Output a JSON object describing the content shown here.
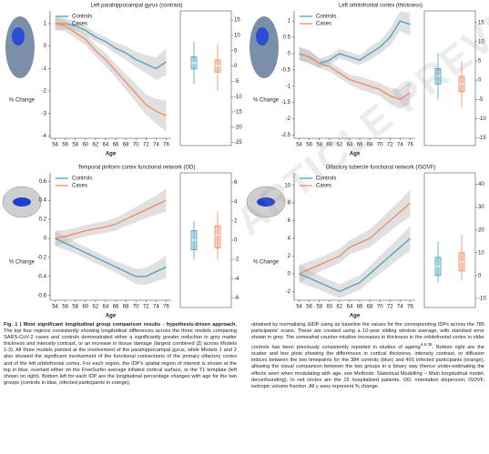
{
  "chart_data": [
    {
      "type": "line",
      "title": "Left parahippocampal gyrus (contrast)",
      "xlabel": "Age",
      "ylabel": "% Change",
      "x": [
        54,
        56,
        58,
        60,
        62,
        64,
        66,
        68,
        70,
        72,
        74,
        76
      ],
      "xlim": [
        53,
        77
      ],
      "xticks": [
        54,
        56,
        58,
        60,
        62,
        64,
        66,
        68,
        70,
        72,
        74,
        76
      ],
      "ylim": [
        -4.1,
        1.4
      ],
      "yticks": [
        1,
        0,
        -1,
        -2,
        -3,
        -4
      ],
      "series": [
        {
          "name": "Controls",
          "color": "#4aa0c2",
          "values": [
            1,
            1,
            0.9,
            0.7,
            0.4,
            0.2,
            -0.1,
            -0.3,
            -0.6,
            -0.8,
            -1,
            -0.7
          ],
          "error": [
            0.3,
            0.25,
            0.2,
            0.2,
            0.2,
            0.2,
            0.25,
            0.3,
            0.35,
            0.4,
            0.5,
            0.6
          ]
        },
        {
          "name": "Cases",
          "color": "#f08a5d",
          "values": [
            1,
            0.9,
            0.6,
            0.3,
            -0.2,
            -0.6,
            -1.1,
            -1.6,
            -2.1,
            -2.6,
            -2.9,
            -3.1
          ],
          "error": [
            0.3,
            0.25,
            0.25,
            0.25,
            0.25,
            0.3,
            0.3,
            0.35,
            0.4,
            0.45,
            0.55,
            0.7
          ]
        }
      ],
      "box": {
        "ylim": [
          -26,
          18
        ],
        "yticks": [
          15,
          10,
          5,
          0,
          -5,
          -10,
          -15,
          -20,
          -25
        ],
        "stats": [
          [
            -6,
            -1,
            1,
            3,
            8
          ],
          [
            -8,
            -2,
            0,
            2,
            7
          ]
        ]
      }
    },
    {
      "type": "line",
      "title": "Left orbitofrontal cortex (thickness)",
      "xlabel": "Age",
      "ylabel": "% Change",
      "x": [
        54,
        56,
        58,
        60,
        62,
        64,
        66,
        68,
        70,
        72,
        74,
        76
      ],
      "xlim": [
        53,
        77
      ],
      "xticks": [
        54,
        56,
        58,
        60,
        62,
        64,
        66,
        68,
        70,
        72,
        74,
        76
      ],
      "ylim": [
        -2.6,
        1.2
      ],
      "yticks": [
        1,
        0.5,
        0,
        -0.5,
        -1,
        -1.5,
        -2,
        -2.5
      ],
      "series": [
        {
          "name": "Controls",
          "color": "#4aa0c2",
          "values": [
            0,
            -0.1,
            -0.3,
            -0.2,
            0,
            -0.1,
            -0.2,
            0,
            0.2,
            0.5,
            1,
            0.9
          ],
          "error": [
            0.2,
            0.2,
            0.15,
            0.15,
            0.15,
            0.15,
            0.15,
            0.2,
            0.2,
            0.25,
            0.3,
            0.35
          ]
        },
        {
          "name": "Cases",
          "color": "#f08a5d",
          "values": [
            0,
            -0.1,
            -0.3,
            -0.4,
            -0.6,
            -0.8,
            -0.9,
            -1,
            -1.1,
            -1.3,
            -1.4,
            -1.2
          ],
          "error": [
            0.2,
            0.2,
            0.15,
            0.15,
            0.15,
            0.15,
            0.2,
            0.2,
            0.2,
            0.25,
            0.3,
            0.35
          ]
        }
      ],
      "box": {
        "ylim": [
          -17,
          18
        ],
        "yticks": [
          15,
          10,
          5,
          0,
          -5,
          -10,
          -15
        ],
        "stats": [
          [
            -5,
            -1,
            1,
            3,
            7
          ],
          [
            -7,
            -3,
            -1,
            1,
            5
          ]
        ]
      }
    },
    {
      "type": "line",
      "title": "Temporal piriform cortex functional network (OD)",
      "xlabel": "Age",
      "ylabel": "% Change",
      "x": [
        54,
        56,
        58,
        60,
        62,
        64,
        66,
        68,
        70,
        72,
        74,
        76
      ],
      "xlim": [
        53,
        77
      ],
      "xticks": [
        54,
        56,
        58,
        60,
        62,
        64,
        66,
        68,
        70,
        72,
        74,
        76
      ],
      "ylim": [
        -0.65,
        0.65
      ],
      "yticks": [
        0.6,
        0.4,
        0.2,
        0,
        -0.2,
        -0.4,
        -0.6
      ],
      "series": [
        {
          "name": "Controls",
          "color": "#4aa0c2",
          "values": [
            0,
            -0.05,
            -0.1,
            -0.15,
            -0.2,
            -0.25,
            -0.3,
            -0.35,
            -0.4,
            -0.4,
            -0.35,
            -0.3
          ],
          "error": [
            0.08,
            0.07,
            0.06,
            0.06,
            0.06,
            0.06,
            0.06,
            0.07,
            0.08,
            0.09,
            0.1,
            0.12
          ]
        },
        {
          "name": "Cases",
          "color": "#f08a5d",
          "values": [
            0,
            0.02,
            0.05,
            0.08,
            0.1,
            0.12,
            0.15,
            0.2,
            0.25,
            0.3,
            0.35,
            0.4
          ],
          "error": [
            0.08,
            0.07,
            0.06,
            0.06,
            0.06,
            0.06,
            0.07,
            0.07,
            0.08,
            0.09,
            0.1,
            0.12
          ]
        }
      ],
      "box": {
        "ylim": [
          -7,
          7
        ],
        "yticks": [
          6,
          4,
          2,
          0,
          -2,
          -4,
          -6
        ],
        "stats": [
          [
            -2,
            -1,
            0,
            1,
            2
          ],
          [
            -2,
            -0.8,
            0.5,
            1.5,
            3
          ]
        ]
      }
    },
    {
      "type": "line",
      "title": "Olfactory tubercle functional network (ISOVF)",
      "xlabel": "Age",
      "ylabel": "% Change",
      "x": [
        54,
        56,
        58,
        60,
        62,
        64,
        66,
        68,
        70,
        72,
        74,
        76
      ],
      "xlim": [
        53,
        77
      ],
      "xticks": [
        54,
        56,
        58,
        60,
        62,
        64,
        66,
        68,
        70,
        72,
        74,
        76
      ],
      "ylim": [
        -3,
        11
      ],
      "yticks": [
        10,
        8,
        6,
        4,
        2,
        0,
        -2
      ],
      "series": [
        {
          "name": "Controls",
          "color": "#4aa0c2",
          "values": [
            0,
            -0.5,
            -1,
            -1.5,
            -2,
            -1.5,
            -1,
            0,
            1,
            2,
            3,
            4
          ],
          "error": [
            1,
            0.9,
            0.8,
            0.8,
            0.8,
            0.8,
            0.8,
            0.9,
            1,
            1.1,
            1.2,
            1.4
          ]
        },
        {
          "name": "Cases",
          "color": "#f08a5d",
          "values": [
            0,
            0.5,
            1,
            1.5,
            2,
            3,
            3.5,
            4,
            5,
            6,
            7,
            8
          ],
          "error": [
            1,
            0.9,
            0.8,
            0.8,
            0.8,
            0.8,
            0.9,
            1,
            1.1,
            1.2,
            1.3,
            1.5
          ]
        }
      ],
      "box": {
        "ylim": [
          -14,
          45
        ],
        "yticks": [
          40,
          30,
          20,
          10,
          0,
          -10
        ],
        "stats": [
          [
            -3,
            0,
            4,
            8,
            15
          ],
          [
            -2,
            2,
            6,
            10,
            18
          ]
        ]
      }
    }
  ],
  "caption": {
    "label": "Fig. 1 | Most significant longitudinal group comparison results - hypothesis-driven approach.",
    "left": " The top four regions consistently showing longitudinal differences across the three models comparing SARS-CoV-2 cases and controls demonstrated either a significantly greater reduction in grey matter thickness and intensity contrast, or an increase in tissue damage (largest combined |Z| across Models 1-3). All three models pointed at the involvement of the parahippocampal gyrus, while Models 1 and 2 also showed the significant involvement of the functional connections of the primary olfactory cortex and of the left orbitofrontal cortex. For each region, the IDP's spatial region of interest is shown at the top in blue, overlaid either on the FreeSurfer average inflated cortical surface, or the T1 template (left shown on right). Bottom left for each IDP are the longitudinal percentage changes with age for the two groups (controls in blue, infected participants in orange),",
    "right": [
      "obtained by normalising ΔIDP using as baseline the values for the corresponding IDPs across the 785 participants' scans. These are created using a 10-year sliding window average, with standard error shown in grey. The somewhat counter-intuitive increases in thickness in the orbitofrontal cortex in older controls has been previously consistently reported in studies of ageing",
      "4,6,38",
      ". Bottom right are the scatter and box plots showing the differences in cortical thickness, intensity contrast, or diffusion indices between the two timepoints for the 384 controls (blue) and 401 infected participants (orange), allowing the visual comparison between the two groups in a binary way (hence under-estimating the effects seen when modulating with age, see Methods: Statistical Modelling – Main longitudinal model, deconfounding). In red circles are the 15 hospitalised patients. OD, orientation dispersion; ISOVF, isotropic volume fraction. All y axes represent % change."
    ]
  },
  "watermark": "ARTICLE PREVIEW"
}
